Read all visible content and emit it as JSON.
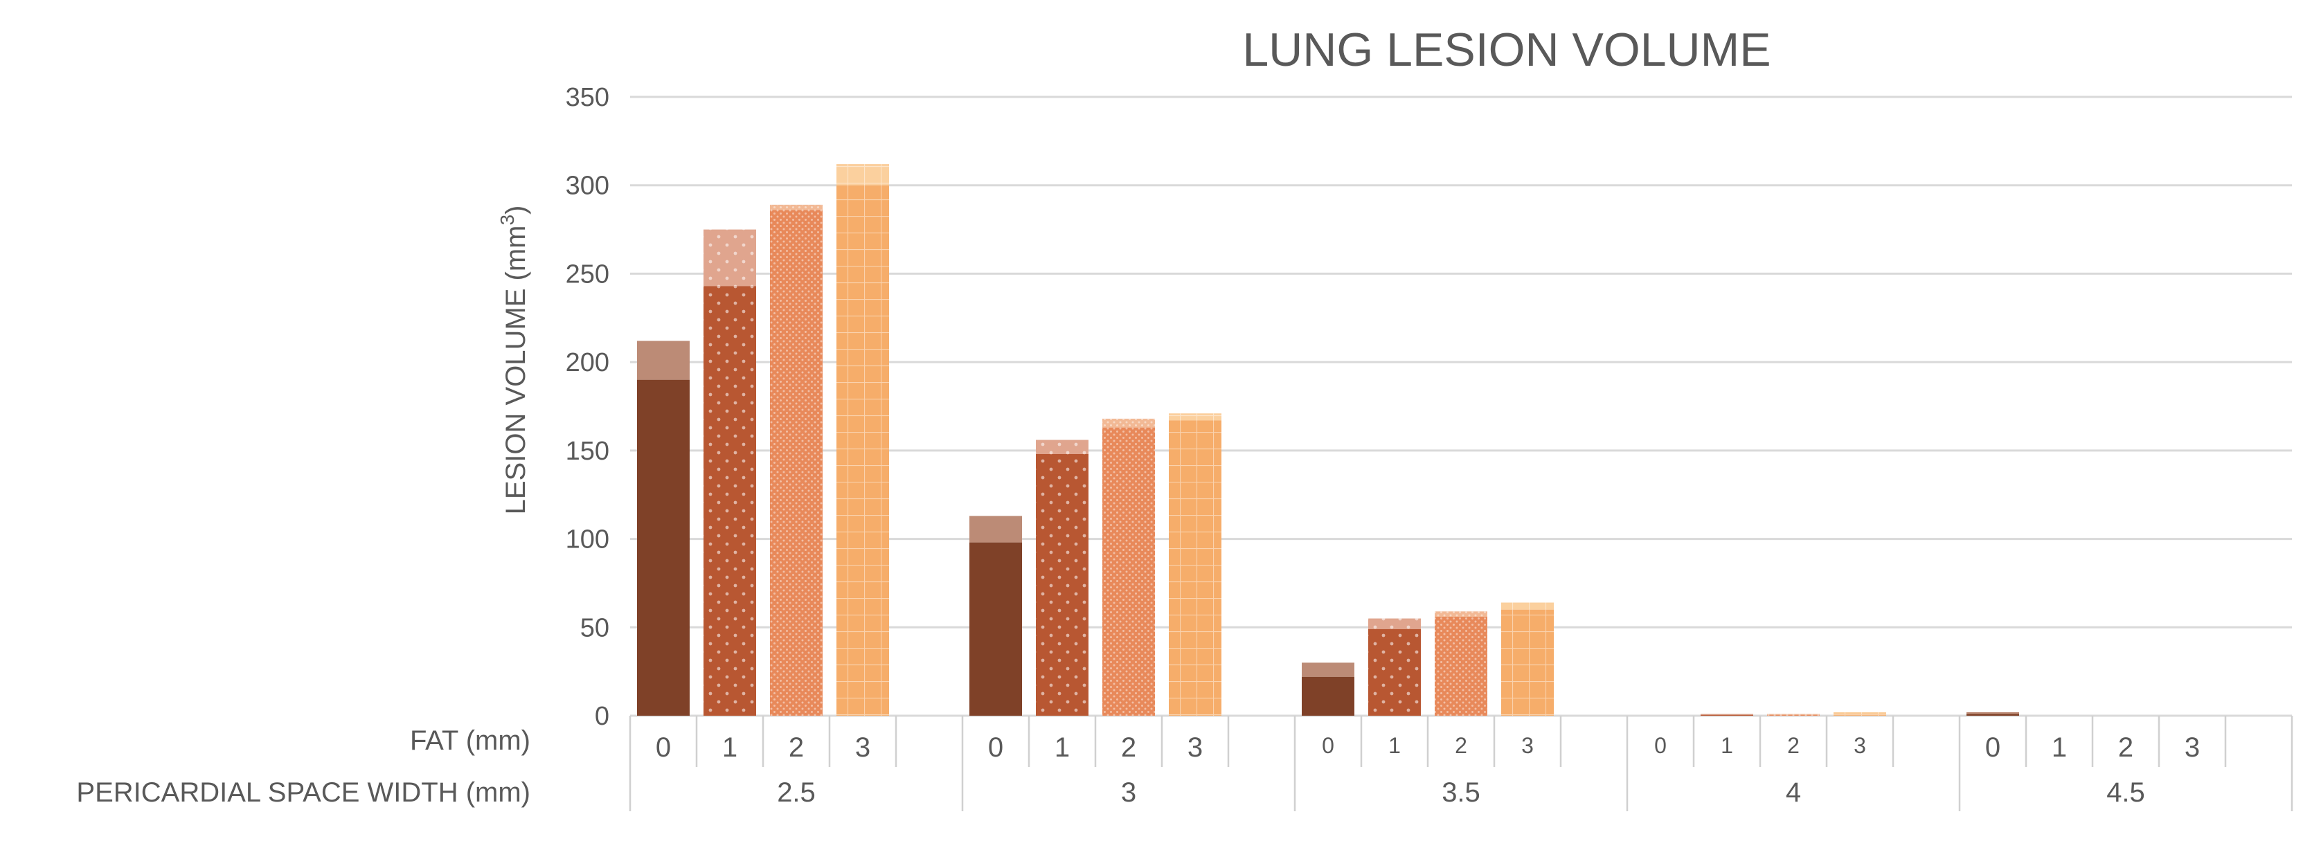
{
  "chart_data": {
    "type": "bar",
    "title": "LUNG LESION VOLUME",
    "ylabel": "LESION VOLUME (mm",
    "ylabel_superscript": "3",
    "ylabel_suffix": ")",
    "ylim": [
      0,
      350
    ],
    "yticks": [
      "0",
      "50",
      "100",
      "150",
      "200",
      "250",
      "300",
      "350"
    ],
    "grid": true,
    "row_labels": {
      "fat": "FAT (mm)",
      "width": "PERICARDIAL SPACE WIDTH (mm)"
    },
    "groups": [
      {
        "label": "2.5",
        "bars": [
          {
            "fat": "0",
            "base": 190,
            "total": 212
          },
          {
            "fat": "1",
            "base": 243,
            "total": 275
          },
          {
            "fat": "2",
            "base": 286,
            "total": 289
          },
          {
            "fat": "3",
            "base": 300,
            "total": 312
          }
        ]
      },
      {
        "label": "3",
        "bars": [
          {
            "fat": "0",
            "base": 98,
            "total": 113
          },
          {
            "fat": "1",
            "base": 148,
            "total": 156
          },
          {
            "fat": "2",
            "base": 163,
            "total": 168
          },
          {
            "fat": "3",
            "base": 167,
            "total": 171
          }
        ]
      },
      {
        "label": "3.5",
        "bars": [
          {
            "fat": "0",
            "base": 22,
            "total": 30
          },
          {
            "fat": "1",
            "base": 49,
            "total": 55
          },
          {
            "fat": "2",
            "base": 56,
            "total": 59
          },
          {
            "fat": "3",
            "base": 60,
            "total": 64
          }
        ]
      },
      {
        "label": "4",
        "bars": [
          {
            "fat": "0",
            "base": 0,
            "total": 0
          },
          {
            "fat": "1",
            "base": 0.5,
            "total": 1
          },
          {
            "fat": "2",
            "base": 0.5,
            "total": 1
          },
          {
            "fat": "3",
            "base": 1,
            "total": 2
          }
        ]
      },
      {
        "label": "4.5",
        "bars": [
          {
            "fat": "0",
            "base": 1,
            "total": 2
          },
          {
            "fat": "1",
            "base": 0,
            "total": 0
          },
          {
            "fat": "2",
            "base": 0,
            "total": 0
          },
          {
            "fat": "3",
            "base": 0,
            "total": 0
          }
        ]
      }
    ],
    "fat_label_size": [
      "large",
      "large",
      "small",
      "small",
      "large"
    ],
    "colors": {
      "fat0": {
        "base": "#7f4128",
        "top": "#bc8b76"
      },
      "fat1": {
        "base": "#b85732",
        "top": "#e0a58e"
      },
      "fat2": {
        "base": "#e8895a",
        "top": "#f2b995"
      },
      "fat3": {
        "base": "#f6ad6a",
        "top": "#fbd09e"
      },
      "grid": "#d9d9d9",
      "text": "#595959"
    }
  }
}
